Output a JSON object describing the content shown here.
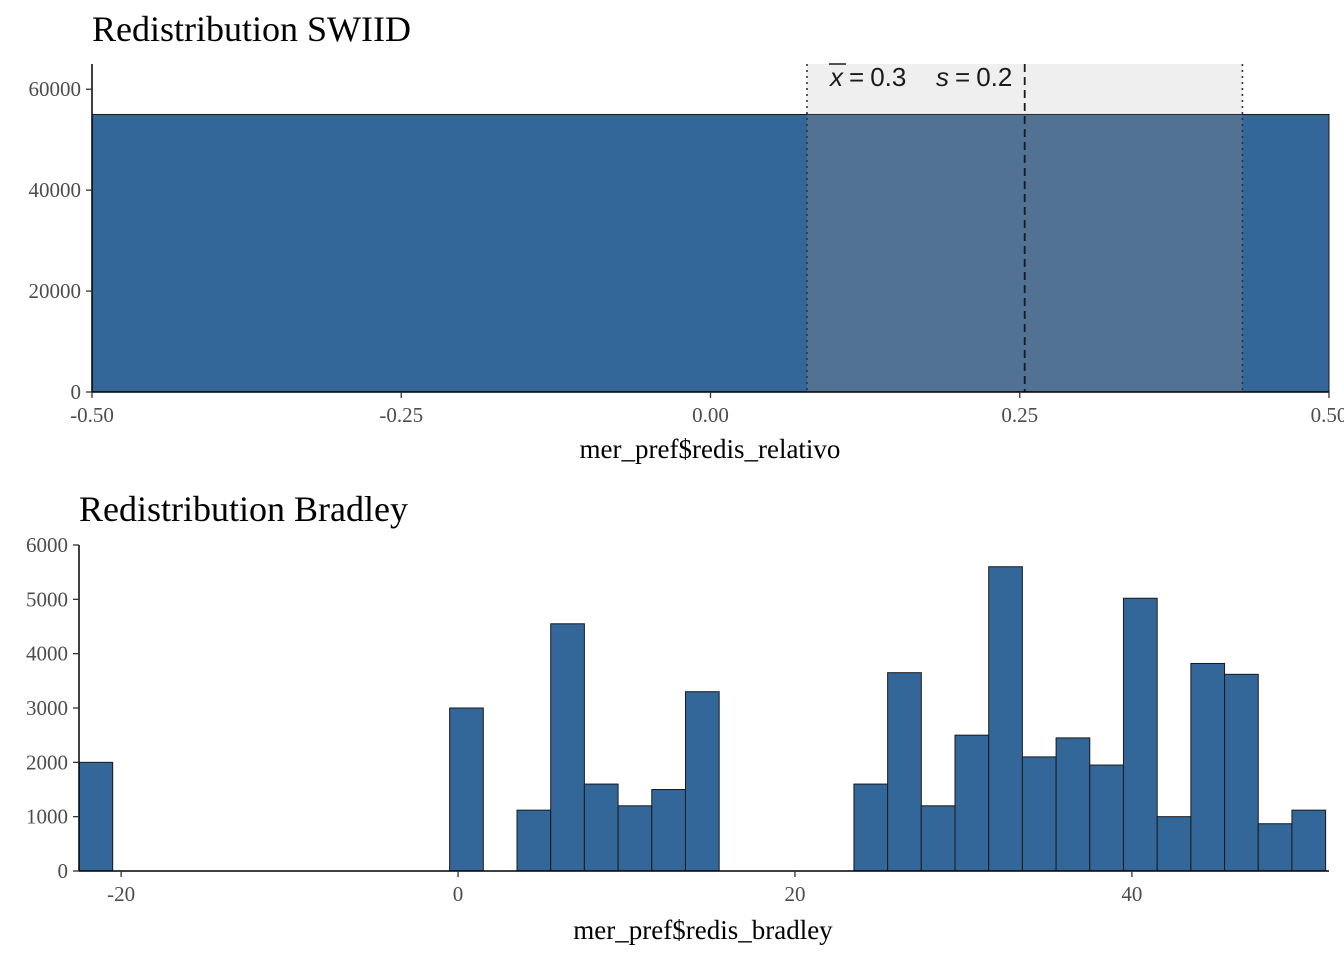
{
  "chart_data": [
    {
      "type": "bar",
      "title": "Redistribution SWIID",
      "xlabel": "mer_pref$redis_relativo",
      "ylabel": "",
      "xlim": [
        -0.5,
        0.5
      ],
      "ylim": [
        0,
        65000
      ],
      "x_ticks": [
        -0.5,
        -0.25,
        0.0,
        0.25,
        0.5
      ],
      "x_tick_labels": [
        "-0.50",
        "-0.25",
        "0.00",
        "0.25",
        "0.50"
      ],
      "y_ticks": [
        0,
        20000,
        40000,
        60000
      ],
      "y_tick_labels": [
        "0",
        "20000",
        "40000",
        "60000"
      ],
      "bins": [
        {
          "x0": -0.5,
          "x1": 0.5,
          "count": 55000
        }
      ],
      "mean": 0.254,
      "sd": 0.176,
      "annotation": {
        "mean_label": "0.3",
        "sd_label": "0.2"
      },
      "bar_color": "#336699",
      "band_color": "#efefef"
    },
    {
      "type": "bar",
      "title": "Redistribution Bradley",
      "xlabel": "mer_pref$redis_bradley",
      "ylabel": "",
      "xlim": [
        -22.5,
        51.7
      ],
      "ylim": [
        0,
        6000
      ],
      "x_ticks": [
        -20,
        0,
        20,
        40
      ],
      "x_tick_labels": [
        "-20",
        "0",
        "20",
        "40"
      ],
      "y_ticks": [
        0,
        1000,
        2000,
        3000,
        4000,
        5000,
        6000
      ],
      "y_tick_labels": [
        "0",
        "1000",
        "2000",
        "3000",
        "4000",
        "5000",
        "6000"
      ],
      "bin_start": -22.5,
      "bin_width": 2,
      "counts": [
        2000,
        0,
        0,
        0,
        0,
        0,
        0,
        0,
        0,
        0,
        0,
        3000,
        0,
        1120,
        4550,
        1600,
        1200,
        1500,
        3300,
        0,
        0,
        0,
        0,
        1600,
        3650,
        1200,
        2500,
        5600,
        2100,
        2450,
        1950,
        5020,
        1000,
        3820,
        3620,
        870,
        1120
      ],
      "bar_color": "#336699"
    }
  ]
}
